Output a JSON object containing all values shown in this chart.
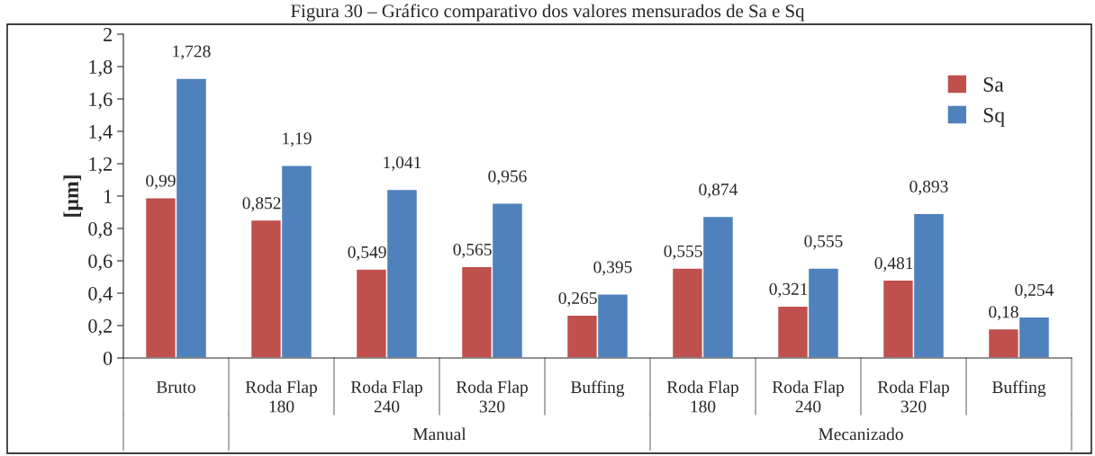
{
  "chart_data": {
    "type": "bar",
    "title": "Figura 30 – Gráfico comparativo dos valores mensurados de Sa e Sq",
    "ylabel": "[µm]",
    "categories": [
      "Bruto",
      "Roda Flap\n180",
      "Roda Flap\n240",
      "Roda Flap\n320",
      "Buffing",
      "Roda Flap\n180",
      "Roda Flap\n240",
      "Roda Flap\n320",
      "Buffing"
    ],
    "series": [
      {
        "name": "Sa",
        "color": "#c0504d",
        "values": [
          0.99,
          0.852,
          0.549,
          0.565,
          0.265,
          0.555,
          0.321,
          0.481,
          0.18
        ],
        "value_labels": [
          "0,99",
          "0,852",
          "0,549",
          "0,565",
          "0,265",
          "0,555",
          "0,321",
          "0,481",
          "0,18"
        ]
      },
      {
        "name": "Sq",
        "color": "#4f81bd",
        "values": [
          1.728,
          1.19,
          1.041,
          0.956,
          0.395,
          0.874,
          0.555,
          0.893,
          0.254
        ],
        "value_labels": [
          "1,728",
          "1,19",
          "1,041",
          "0,956",
          "0,395",
          "0,874",
          "0,555",
          "0,893",
          "0,254"
        ]
      }
    ],
    "ylim": [
      0,
      2
    ],
    "yticks": [
      0,
      {
        "value": 0.2,
        "label": "0,2"
      },
      {
        "value": 0.4,
        "label": "0,4"
      },
      {
        "value": 0.6,
        "label": "0,6"
      },
      {
        "value": 0.8,
        "label": "0,8"
      },
      1,
      {
        "value": 1.2,
        "label": "1,2"
      },
      {
        "value": 1.4,
        "label": "1,4"
      },
      {
        "value": 1.6,
        "label": "1,6"
      },
      {
        "value": 1.8,
        "label": "1,8"
      },
      2
    ],
    "grid": false,
    "legend": "top right",
    "annotations": [
      "Manual",
      "Mecanizado"
    ]
  }
}
